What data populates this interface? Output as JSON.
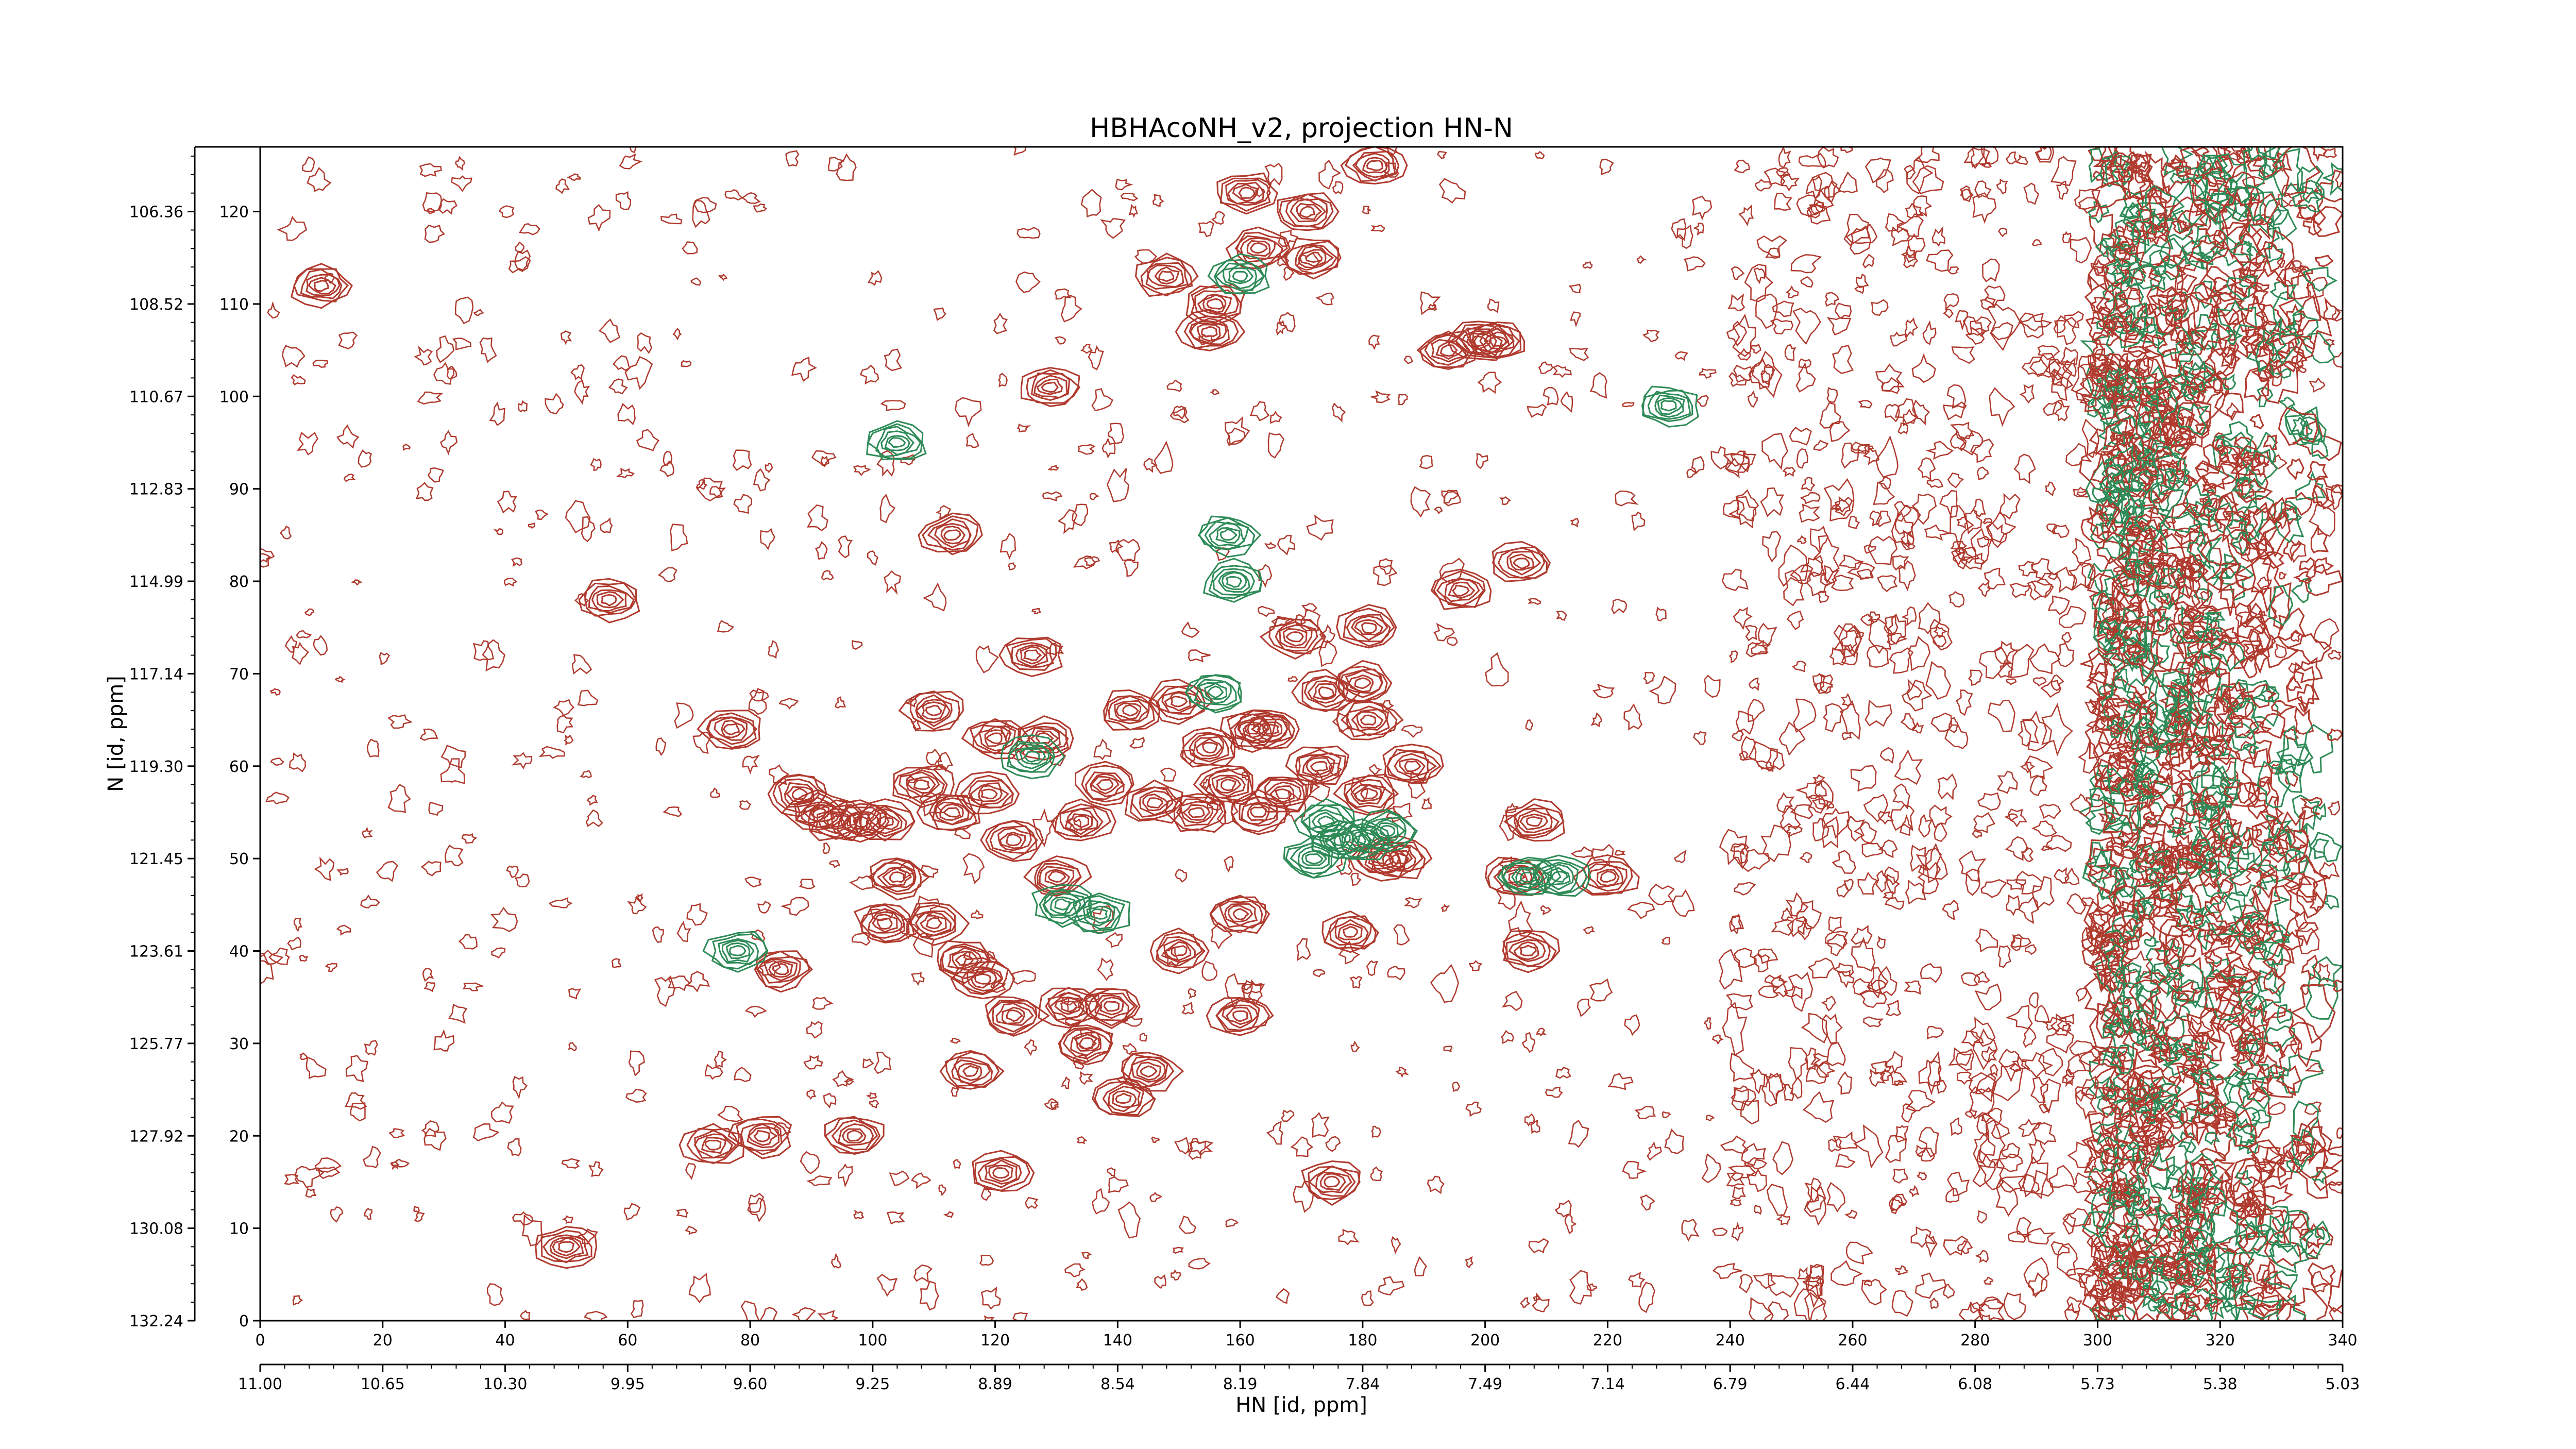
{
  "chart_data": {
    "type": "contour",
    "title": "HBHAcoNH_v2, projection HN-N",
    "xlabel": "HN [id, ppm]",
    "ylabel": "N [id, ppm]",
    "x_index_range": [
      0,
      340
    ],
    "y_index_range": [
      0,
      127
    ],
    "x_index_ticks": [
      "0",
      "20",
      "40",
      "60",
      "80",
      "100",
      "120",
      "140",
      "160",
      "180",
      "200",
      "220",
      "240",
      "260",
      "280",
      "300",
      "320",
      "340"
    ],
    "x_ppm_range": [
      11.0,
      5.03
    ],
    "x_ppm_ticks": [
      "11.00",
      "10.65",
      "10.30",
      "9.95",
      "9.60",
      "9.25",
      "8.89",
      "8.54",
      "8.19",
      "7.84",
      "7.49",
      "7.14",
      "6.79",
      "6.44",
      "6.08",
      "5.73",
      "5.38",
      "5.03"
    ],
    "y_index_ticks": [
      "0",
      "10",
      "20",
      "30",
      "40",
      "50",
      "60",
      "70",
      "80",
      "90",
      "100",
      "110",
      "120"
    ],
    "y_ppm_range": [
      132.24,
      105.25
    ],
    "y_ppm_ticks": [
      "132.24",
      "130.08",
      "127.92",
      "125.77",
      "123.61",
      "121.45",
      "119.30",
      "117.14",
      "114.99",
      "112.83",
      "110.67",
      "108.52",
      "106.36"
    ],
    "series": [
      {
        "name": "",
        "color": "#b03a2e"
      },
      {
        "name": "",
        "color": "#2e8b57"
      }
    ],
    "positive_peaks": [
      [
        10,
        112
      ],
      [
        50,
        8
      ],
      [
        57,
        78
      ],
      [
        74,
        19
      ],
      [
        77,
        64
      ],
      [
        82,
        20
      ],
      [
        85,
        38
      ],
      [
        88,
        57
      ],
      [
        91,
        55
      ],
      [
        94,
        54
      ],
      [
        98,
        54
      ],
      [
        97,
        20
      ],
      [
        102,
        54
      ],
      [
        102,
        43
      ],
      [
        104,
        48
      ],
      [
        108,
        58
      ],
      [
        110,
        43
      ],
      [
        110,
        66
      ],
      [
        113,
        55
      ],
      [
        113,
        85
      ],
      [
        115,
        39
      ],
      [
        116,
        27
      ],
      [
        118,
        37
      ],
      [
        119,
        57
      ],
      [
        120,
        63
      ],
      [
        121,
        16
      ],
      [
        123,
        33
      ],
      [
        123,
        52
      ],
      [
        126,
        72
      ],
      [
        129,
        101
      ],
      [
        128,
        63
      ],
      [
        130,
        48
      ],
      [
        132,
        34
      ],
      [
        135,
        30
      ],
      [
        134,
        54
      ],
      [
        138,
        58
      ],
      [
        139,
        34
      ],
      [
        141,
        24
      ],
      [
        142,
        66
      ],
      [
        145,
        27
      ],
      [
        146,
        56
      ],
      [
        148,
        113
      ],
      [
        150,
        67
      ],
      [
        150,
        40
      ],
      [
        153,
        55
      ],
      [
        155,
        107
      ],
      [
        155,
        62
      ],
      [
        156,
        110
      ],
      [
        158,
        58
      ],
      [
        160,
        33
      ],
      [
        160,
        44
      ],
      [
        161,
        122
      ],
      [
        162,
        64
      ],
      [
        163,
        116
      ],
      [
        163,
        55
      ],
      [
        165,
        64
      ],
      [
        167,
        57
      ],
      [
        169,
        74
      ],
      [
        171,
        120
      ],
      [
        172,
        115
      ],
      [
        173,
        60
      ],
      [
        174,
        68
      ],
      [
        175,
        15
      ],
      [
        178,
        42
      ],
      [
        180,
        69
      ],
      [
        181,
        65
      ],
      [
        181,
        57
      ],
      [
        182,
        125
      ],
      [
        181,
        75
      ],
      [
        183,
        50
      ],
      [
        186,
        50
      ],
      [
        188,
        60
      ],
      [
        194,
        105
      ],
      [
        196,
        79
      ],
      [
        199,
        106
      ],
      [
        202,
        106
      ],
      [
        205,
        48
      ],
      [
        206,
        82
      ],
      [
        207,
        40
      ],
      [
        208,
        54
      ],
      [
        220,
        48
      ]
    ],
    "negative_peaks": [
      [
        104,
        95
      ],
      [
        78,
        40
      ],
      [
        126,
        61
      ],
      [
        131,
        45
      ],
      [
        137,
        44
      ],
      [
        160,
        113
      ],
      [
        158,
        85
      ],
      [
        159,
        80
      ],
      [
        156,
        68
      ],
      [
        174,
        54
      ],
      [
        172,
        50
      ],
      [
        176,
        52
      ],
      [
        180,
        52
      ],
      [
        184,
        53
      ],
      [
        207,
        48
      ],
      [
        212,
        48
      ],
      [
        230,
        99
      ]
    ],
    "noise_region_x_start": 300
  }
}
